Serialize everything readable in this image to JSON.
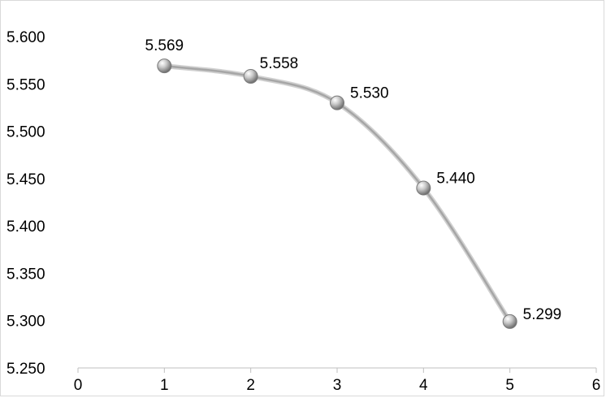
{
  "chart_data": {
    "type": "scatter",
    "title": "",
    "xlabel": "",
    "ylabel": "",
    "xlim": [
      0,
      6
    ],
    "ylim": [
      5.25,
      5.6
    ],
    "x_ticks": [
      "0",
      "1",
      "2",
      "3",
      "4",
      "5",
      "6"
    ],
    "y_ticks": [
      "5.250",
      "5.300",
      "5.350",
      "5.400",
      "5.450",
      "5.500",
      "5.550",
      "5.600"
    ],
    "grid": false,
    "legend": "none",
    "smooth_line": true,
    "series": [
      {
        "x": [
          1,
          2,
          3,
          4,
          5
        ],
        "y": [
          5.569,
          5.558,
          5.53,
          5.44,
          5.299
        ],
        "labels": [
          "5.569",
          "5.558",
          "5.530",
          "5.440",
          "5.299"
        ]
      }
    ],
    "colors": {
      "line": "#a6a6a6",
      "marker": "#9a9a9a",
      "axis": "#bfbfbf",
      "frame": "#d9d9d9"
    }
  }
}
